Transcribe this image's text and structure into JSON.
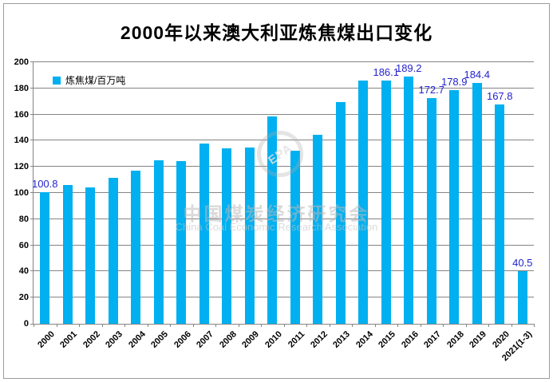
{
  "chart_data": {
    "type": "bar",
    "title": "2000年以来澳大利亚炼焦煤出口变化",
    "legend": {
      "label": "炼焦煤/百万吨",
      "position": "top-left-inside"
    },
    "categories": [
      "2000",
      "2001",
      "2002",
      "2003",
      "2004",
      "2005",
      "2006",
      "2007",
      "2008",
      "2009",
      "2010",
      "2011",
      "2012",
      "2013",
      "2014",
      "2015",
      "2016",
      "2017",
      "2018",
      "2019",
      "2020",
      "2021(1-3)"
    ],
    "values": [
      100.8,
      106.0,
      104.4,
      111.5,
      117.1,
      124.9,
      124.2,
      137.9,
      134.1,
      134.9,
      158.7,
      132.5,
      144.6,
      169.6,
      186.0,
      186.1,
      189.2,
      172.7,
      178.9,
      184.4,
      167.8,
      40.5
    ],
    "data_labels": [
      "100.8",
      null,
      null,
      null,
      null,
      null,
      null,
      null,
      null,
      null,
      null,
      null,
      null,
      null,
      null,
      "186.1",
      "189.2",
      "172.7",
      "178.9",
      "184.4",
      "167.8",
      "40.5"
    ],
    "ylim": [
      0,
      200
    ],
    "yticks": [
      0,
      20,
      40,
      60,
      80,
      100,
      120,
      140,
      160,
      180,
      200
    ],
    "grid": true,
    "bar_color": "#00b0f0",
    "data_label_color": "#2323cc",
    "xlabel": "",
    "ylabel": ""
  },
  "watermark": {
    "logo_letters": "EPA",
    "line1": "中国煤炭经济研究会",
    "line2": "China Coal Economic Research Association"
  }
}
